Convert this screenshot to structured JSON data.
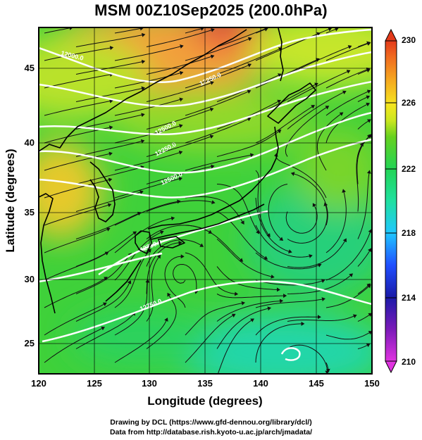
{
  "title": "MSM 00Z10Sep2025 (200.0hPa)",
  "axes": {
    "xlabel": "Longitude (degrees)",
    "ylabel": "Latitude  (degrees)",
    "xlim": [
      120,
      150
    ],
    "ylim": [
      22.4,
      47.6
    ],
    "xticks": [
      "120",
      "125",
      "130",
      "135",
      "140",
      "145",
      "150"
    ],
    "yticks": [
      "25",
      "30",
      "35",
      "40",
      "45"
    ],
    "xtick_values": [
      120,
      125,
      130,
      135,
      140,
      145,
      150
    ],
    "ytick_values": [
      25,
      30,
      35,
      40,
      45
    ],
    "grid": true
  },
  "colorbar": {
    "min": 210,
    "max": 230,
    "tick_labels": [
      "230",
      "226",
      "222",
      "218",
      "214",
      "210"
    ],
    "tick_values": [
      230,
      226,
      222,
      218,
      214,
      210
    ],
    "colors": [
      "#e033e0",
      "#7a1ab8",
      "#1a1aa8",
      "#1f4fff",
      "#1fc7ff",
      "#1fe0a0",
      "#22d455",
      "#66d11f",
      "#c9e61f",
      "#f5e51f",
      "#f5a61f",
      "#f06a1f",
      "#e33a1a"
    ]
  },
  "contours": {
    "labels": [
      "12000.0",
      "12250.0",
      "12500.0",
      "12750.0"
    ]
  },
  "credits": {
    "line1": "Drawing by DCL (https://www.gfd-dennou.org/library/dcl/)",
    "line2": "Data from http://database.rish.kyoto-u.ac.jp/arch/jmadata/"
  }
}
